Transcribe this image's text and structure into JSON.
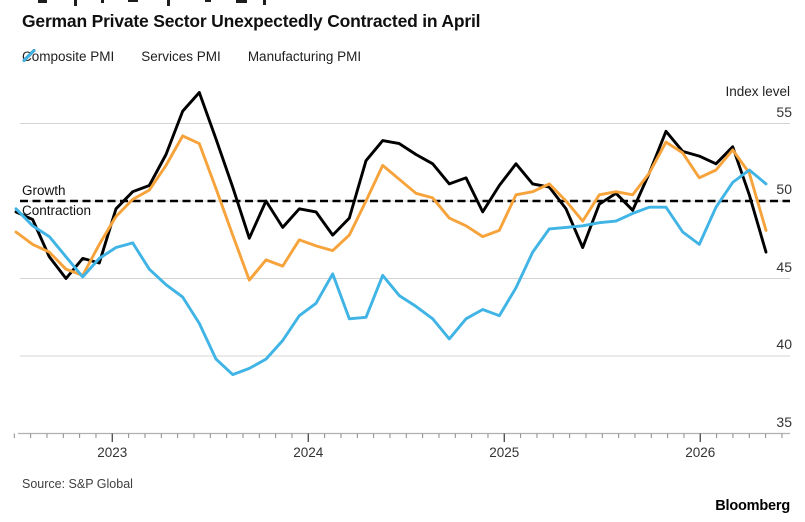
{
  "header": {
    "title": "German Private Sector Unexpectedly Contracted in April"
  },
  "annotations": {
    "growth": "Growth",
    "contraction": "Contraction",
    "axis_title": "Index level"
  },
  "footer": {
    "source": "Source: S&P Global",
    "brand": "Bloomberg"
  },
  "colors": {
    "composite": "#F6A33B",
    "services": "#000000",
    "manufacturing": "#3FB4E5",
    "gridline": "#d4d4d4",
    "axis": "#b0b0b0",
    "tick": "#8a8a8a",
    "reference": "#000000"
  },
  "chart_data": {
    "type": "line",
    "x_unit": "month",
    "x_year_labels": [
      "2023",
      "2024",
      "2025",
      "2026"
    ],
    "y_ticks": [
      35,
      40,
      45,
      50,
      55
    ],
    "ylim": [
      33.5,
      58
    ],
    "y_axis_title": "Index level",
    "reference_line": 50,
    "grid": "horizontal",
    "legend_position": "top",
    "series": [
      {
        "name": "Composite PMI",
        "color": "#F6A33B",
        "values": [
          48.0,
          47.2,
          46.7,
          45.6,
          45.2,
          47.2,
          49.0,
          50.1,
          50.7,
          52.3,
          54.2,
          53.7,
          50.8,
          47.8,
          44.9,
          46.2,
          45.8,
          47.5,
          47.1,
          46.8,
          47.8,
          50.0,
          52.3,
          51.4,
          50.5,
          50.2,
          48.9,
          48.4,
          47.7,
          48.1,
          50.4,
          50.6,
          51.1,
          50.0,
          48.7,
          50.4,
          50.6,
          50.4,
          51.8,
          53.8,
          53.1,
          51.5,
          52.0,
          53.3,
          51.8,
          48.1
        ]
      },
      {
        "name": "Services PMI",
        "color": "#000000",
        "values": [
          49.3,
          48.8,
          46.4,
          45.0,
          46.3,
          46.0,
          49.5,
          50.6,
          51.0,
          53.0,
          55.8,
          57.0,
          54.0,
          50.9,
          47.6,
          50.0,
          48.3,
          49.5,
          49.3,
          47.8,
          48.9,
          52.6,
          53.9,
          53.7,
          53.0,
          52.4,
          51.1,
          51.5,
          49.3,
          51.0,
          52.4,
          51.1,
          50.9,
          49.5,
          47.0,
          49.8,
          50.5,
          49.4,
          51.8,
          54.5,
          53.2,
          52.9,
          52.4,
          53.5,
          50.4,
          46.7
        ]
      },
      {
        "name": "Manufacturing PMI",
        "color": "#3FB4E5",
        "values": [
          49.5,
          48.4,
          47.7,
          46.4,
          45.1,
          46.3,
          47.0,
          47.3,
          45.6,
          44.6,
          43.8,
          42.1,
          39.8,
          38.8,
          39.2,
          39.8,
          41.0,
          42.6,
          43.4,
          45.3,
          42.4,
          42.5,
          45.2,
          43.9,
          43.2,
          42.4,
          41.1,
          42.4,
          43.0,
          42.6,
          44.4,
          46.7,
          48.2,
          48.3,
          48.4,
          48.6,
          48.7,
          49.2,
          49.6,
          49.6,
          48.0,
          47.2,
          49.6,
          51.2,
          52.0,
          51.1
        ]
      }
    ]
  }
}
